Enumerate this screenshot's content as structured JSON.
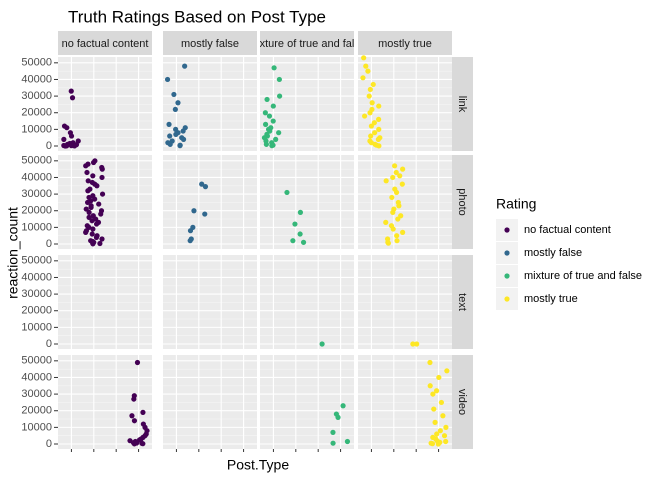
{
  "chart_data": {
    "type": "scatter",
    "title": "Truth Ratings Based on Post Type",
    "x_label": "Post.Type",
    "y_label": "reaction_count",
    "legend_title": "Rating",
    "categories": [
      null,
      null,
      null,
      null
    ],
    "rows": [
      "link",
      "photo",
      "text",
      "video"
    ],
    "ylim": [
      -3000,
      53500
    ],
    "yticks": [
      0,
      10000,
      20000,
      30000,
      40000,
      50000
    ],
    "grid": true,
    "series": [
      {
        "name": "no factual content",
        "color": "#440154",
        "rows": [
          [
            33000,
            29000,
            12000,
            11000,
            8000,
            6000,
            4000,
            3000,
            2000,
            1500,
            1000,
            800,
            500,
            300,
            200,
            100,
            50,
            20
          ],
          [
            50000,
            49000,
            48000,
            47000,
            46000,
            45000,
            43000,
            41000,
            40000,
            38000,
            37000,
            36000,
            35000,
            33000,
            32000,
            30000,
            29000,
            28000,
            27000,
            26000,
            25000,
            24000,
            23000,
            22000,
            21000,
            20000,
            19000,
            18000,
            17000,
            16000,
            15000,
            14000,
            13000,
            12000,
            11000,
            10000,
            9000,
            8000,
            7000,
            6000,
            5000,
            4000,
            3000,
            2000,
            1500,
            1000,
            500,
            300,
            100
          ],
          [],
          [
            49000,
            29000,
            27000,
            19000,
            17000,
            14000,
            12000,
            10000,
            8000,
            6000,
            5000,
            4000,
            3000,
            2500,
            2000,
            1500,
            1000,
            800,
            600,
            400,
            200,
            100
          ]
        ]
      },
      {
        "name": "mostly false",
        "color": "#31688E",
        "rows": [
          [
            48000,
            40000,
            31000,
            26000,
            22000,
            13000,
            11000,
            10000,
            9000,
            8000,
            7000,
            6000,
            5000,
            4000,
            3000,
            2000,
            1000,
            500,
            200
          ],
          [
            36000,
            34500,
            20000,
            18000,
            10000,
            8000,
            3000,
            2000
          ],
          [],
          []
        ]
      },
      {
        "name": "mixture of true and false",
        "color": "#35B779",
        "rows": [
          [
            47000,
            40000,
            30000,
            28000,
            24000,
            20000,
            18000,
            15000,
            13000,
            11000,
            10000,
            9000,
            8000,
            7000,
            6000,
            5000,
            4000,
            3000,
            2000,
            1000,
            500,
            200
          ],
          [
            31000,
            19000,
            12000,
            6000,
            2000,
            1000
          ],
          [
            0
          ],
          [
            23000,
            18000,
            16000,
            7000,
            1500,
            500
          ]
        ]
      },
      {
        "name": "mostly true",
        "color": "#FDE725",
        "rows": [
          [
            53000,
            48000,
            45000,
            41000,
            37000,
            34000,
            30000,
            26000,
            24000,
            22000,
            20000,
            18000,
            16000,
            14000,
            12000,
            10000,
            8000,
            6000,
            5000,
            4000,
            3000,
            2000,
            1000,
            500,
            100
          ],
          [
            47000,
            45000,
            43000,
            41000,
            40000,
            38000,
            36000,
            33000,
            31000,
            28000,
            25000,
            23000,
            21000,
            19000,
            17000,
            15000,
            13000,
            11000,
            9000,
            7000,
            5000,
            3000,
            2000,
            1000,
            500
          ],
          [
            0,
            0
          ],
          [
            49000,
            44000,
            40000,
            35000,
            32000,
            30000,
            25000,
            21000,
            17000,
            13000,
            10000,
            8000,
            6000,
            5000,
            4000,
            3000,
            2000,
            1500,
            1000,
            500,
            200,
            0
          ]
        ]
      }
    ]
  }
}
